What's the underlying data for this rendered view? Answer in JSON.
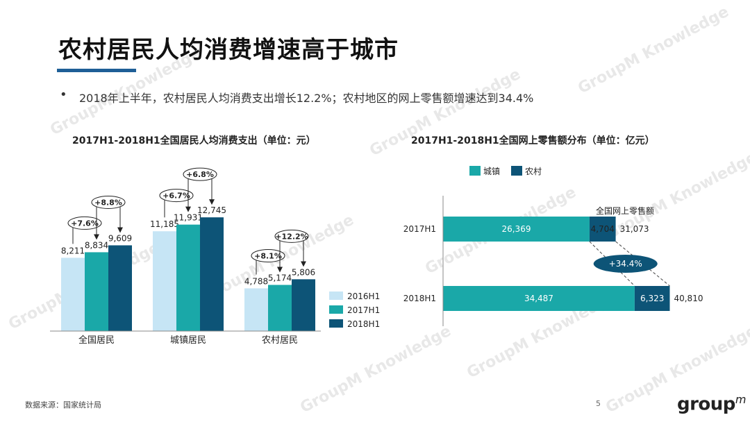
{
  "slide": {
    "title": "农村居民人均消费增速高于城市",
    "bullet": "2018年上半年，农村居民人均消费支出增长12.2%；农村地区的网上零售额增速达到34.4%",
    "bullet_marker": "•",
    "source": "数据来源：国家统计局",
    "page_number": "5",
    "logo": {
      "text": "group",
      "superscript": "m"
    },
    "watermark": "GroupM Knowledge",
    "colors": {
      "title_bar": "#1f5f97",
      "light": "#c6e5f5",
      "teal": "#1aa8a8",
      "navy": "#0d5477"
    }
  },
  "chart_data": [
    {
      "type": "bar",
      "title": "2017H1-2018H1全国居民人均消费支出（单位：元）",
      "categories": [
        "全国居民",
        "城镇居民",
        "农村居民"
      ],
      "series": [
        {
          "name": "2016H1",
          "values": [
            8211,
            11185,
            4788
          ],
          "labels": [
            "8,211",
            "11,185",
            "4,788"
          ],
          "color": "#c6e5f5"
        },
        {
          "name": "2017H1",
          "values": [
            8834,
            11931,
            5174
          ],
          "labels": [
            "8,834",
            "11,931",
            "5,174"
          ],
          "color": "#1aa8a8"
        },
        {
          "name": "2018H1",
          "values": [
            9609,
            12745,
            5806
          ],
          "labels": [
            "9,609",
            "12,745",
            "5,806"
          ],
          "color": "#0d5477"
        }
      ],
      "growth_annotations": [
        {
          "category": "全国居民",
          "from": "2016H1",
          "to": "2017H1",
          "text": "+7.6%"
        },
        {
          "category": "全国居民",
          "from": "2017H1",
          "to": "2018H1",
          "text": "+8.8%"
        },
        {
          "category": "城镇居民",
          "from": "2016H1",
          "to": "2017H1",
          "text": "+6.7%"
        },
        {
          "category": "城镇居民",
          "from": "2017H1",
          "to": "2018H1",
          "text": "+6.8%"
        },
        {
          "category": "农村居民",
          "from": "2016H1",
          "to": "2017H1",
          "text": "+8.1%"
        },
        {
          "category": "农村居民",
          "from": "2017H1",
          "to": "2018H1",
          "text": "+12.2%"
        }
      ],
      "ylim": [
        0,
        14000
      ],
      "grid": false,
      "legend": "right"
    },
    {
      "type": "bar",
      "orientation": "horizontal",
      "stacked": true,
      "title": "2017H1-2018H1全国网上零售额分布（单位：亿元）",
      "categories": [
        "2017H1",
        "2018H1"
      ],
      "series": [
        {
          "name": "城镇",
          "values": [
            26369,
            34487
          ],
          "labels": [
            "26,369",
            "34,487"
          ],
          "color": "#1aa8a8"
        },
        {
          "name": "农村",
          "values": [
            4704,
            6323
          ],
          "labels": [
            "4,704",
            "6,323"
          ],
          "color": "#0d5477"
        }
      ],
      "totals": [
        31073,
        40810
      ],
      "total_labels": [
        "31,073",
        "40,810"
      ],
      "total_header": "全国网上零售额",
      "growth_annotation": {
        "series": "农村",
        "text": "+34.4%"
      },
      "xlim": [
        0,
        45000
      ],
      "grid": false,
      "legend": "top"
    }
  ]
}
